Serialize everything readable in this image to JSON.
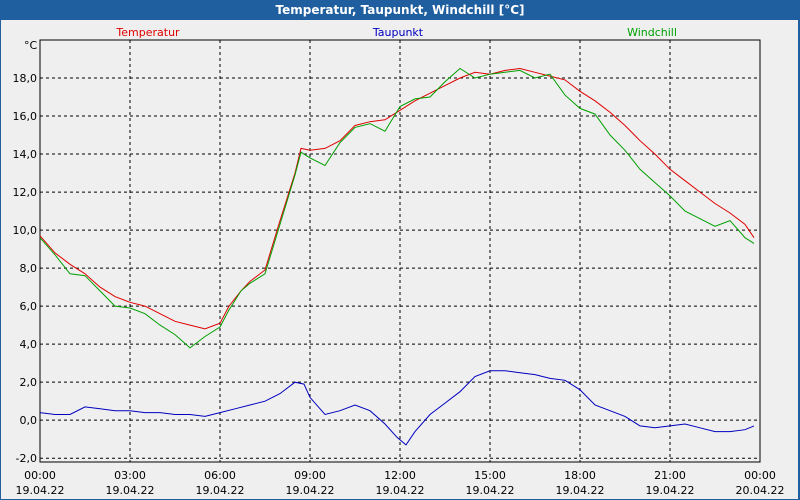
{
  "window": {
    "title": "Temperatur, Taupunkt, Windchill [°C]"
  },
  "chart_data": {
    "type": "line",
    "title": "Temperatur, Taupunkt, Windchill [°C]",
    "ylabel": "°C",
    "ylim": [
      -2.2,
      20.0
    ],
    "yticks": [
      "18,0",
      "16,0",
      "14,0",
      "12,0",
      "10,0",
      "8,0",
      "6,0",
      "4,0",
      "2,0",
      "0,0",
      "-2,0"
    ],
    "ytick_values": [
      18,
      16,
      14,
      12,
      10,
      8,
      6,
      4,
      2,
      0,
      -2
    ],
    "xlim": [
      0,
      24
    ],
    "xticks": [
      {
        "time": "00:00",
        "date": "19.04.22",
        "h": 0
      },
      {
        "time": "03:00",
        "date": "19.04.22",
        "h": 3
      },
      {
        "time": "06:00",
        "date": "19.04.22",
        "h": 6
      },
      {
        "time": "09:00",
        "date": "19.04.22",
        "h": 9
      },
      {
        "time": "12:00",
        "date": "19.04.22",
        "h": 12
      },
      {
        "time": "15:00",
        "date": "19.04.22",
        "h": 15
      },
      {
        "time": "18:00",
        "date": "19.04.22",
        "h": 18
      },
      {
        "time": "21:00",
        "date": "19.04.22",
        "h": 21
      },
      {
        "time": "00:00",
        "date": "20.04.22",
        "h": 24
      }
    ],
    "grid": true,
    "legend_placement": "top",
    "series": [
      {
        "name": "Temperatur",
        "color": "#e00000",
        "x": [
          0.0,
          0.5,
          1.0,
          1.5,
          2.0,
          2.5,
          3.0,
          3.5,
          4.0,
          4.5,
          5.0,
          5.5,
          6.0,
          6.3,
          6.7,
          7.0,
          7.5,
          8.0,
          8.5,
          8.7,
          9.0,
          9.5,
          10.0,
          10.5,
          11.0,
          11.5,
          12.0,
          12.5,
          13.0,
          13.5,
          14.0,
          14.5,
          15.0,
          15.5,
          16.0,
          16.5,
          17.0,
          17.5,
          18.0,
          18.5,
          19.0,
          19.5,
          20.0,
          20.5,
          21.0,
          21.5,
          22.0,
          22.5,
          23.0,
          23.5,
          23.8
        ],
        "y": [
          9.7,
          8.8,
          8.2,
          7.7,
          7.0,
          6.5,
          6.2,
          6.0,
          5.6,
          5.2,
          5.0,
          4.8,
          5.1,
          6.0,
          6.8,
          7.3,
          7.9,
          10.5,
          13.0,
          14.3,
          14.2,
          14.3,
          14.7,
          15.5,
          15.7,
          15.8,
          16.3,
          16.8,
          17.2,
          17.6,
          18.0,
          18.3,
          18.2,
          18.4,
          18.5,
          18.3,
          18.1,
          17.9,
          17.3,
          16.8,
          16.2,
          15.5,
          14.7,
          14.0,
          13.2,
          12.6,
          12.0,
          11.4,
          10.9,
          10.3,
          9.6
        ]
      },
      {
        "name": "Taupunkt",
        "color": "#0000c0",
        "x": [
          0.0,
          0.5,
          1.0,
          1.5,
          2.0,
          2.5,
          3.0,
          3.5,
          4.0,
          4.5,
          5.0,
          5.5,
          6.0,
          6.5,
          7.0,
          7.5,
          8.0,
          8.5,
          8.8,
          9.0,
          9.5,
          10.0,
          10.5,
          11.0,
          11.5,
          11.9,
          12.2,
          12.5,
          13.0,
          13.5,
          14.0,
          14.5,
          15.0,
          15.5,
          16.0,
          16.5,
          17.0,
          17.5,
          18.0,
          18.5,
          19.0,
          19.5,
          20.0,
          20.5,
          21.0,
          21.5,
          22.0,
          22.5,
          23.0,
          23.5,
          23.8
        ],
        "y": [
          0.4,
          0.3,
          0.3,
          0.7,
          0.6,
          0.5,
          0.5,
          0.4,
          0.4,
          0.3,
          0.3,
          0.2,
          0.4,
          0.6,
          0.8,
          1.0,
          1.4,
          2.0,
          1.9,
          1.2,
          0.3,
          0.5,
          0.8,
          0.5,
          -0.2,
          -0.9,
          -1.3,
          -0.6,
          0.3,
          0.9,
          1.5,
          2.3,
          2.6,
          2.6,
          2.5,
          2.4,
          2.2,
          2.1,
          1.6,
          0.8,
          0.5,
          0.2,
          -0.3,
          -0.4,
          -0.3,
          -0.2,
          -0.4,
          -0.6,
          -0.6,
          -0.5,
          -0.3
        ]
      },
      {
        "name": "Windchill",
        "color": "#00a000",
        "x": [
          0.0,
          0.5,
          1.0,
          1.5,
          2.0,
          2.5,
          3.0,
          3.5,
          4.0,
          4.5,
          5.0,
          5.5,
          6.0,
          6.3,
          6.7,
          7.0,
          7.5,
          8.0,
          8.5,
          8.7,
          9.0,
          9.5,
          10.0,
          10.5,
          11.0,
          11.5,
          12.0,
          12.5,
          13.0,
          13.5,
          14.0,
          14.5,
          15.0,
          15.5,
          16.0,
          16.5,
          17.0,
          17.5,
          18.0,
          18.5,
          19.0,
          19.5,
          20.0,
          20.5,
          21.0,
          21.5,
          22.0,
          22.5,
          23.0,
          23.5,
          23.8
        ],
        "y": [
          9.6,
          8.7,
          7.7,
          7.6,
          6.8,
          6.0,
          5.9,
          5.6,
          5.0,
          4.5,
          3.8,
          4.4,
          4.9,
          5.8,
          6.8,
          7.2,
          7.7,
          10.3,
          12.9,
          14.1,
          13.8,
          13.4,
          14.6,
          15.4,
          15.6,
          15.2,
          16.5,
          16.9,
          17.0,
          17.8,
          18.5,
          18.0,
          18.2,
          18.3,
          18.4,
          18.0,
          18.2,
          17.1,
          16.4,
          16.1,
          15.0,
          14.2,
          13.2,
          12.5,
          11.8,
          11.0,
          10.6,
          10.2,
          10.5,
          9.6,
          9.3
        ]
      }
    ]
  }
}
